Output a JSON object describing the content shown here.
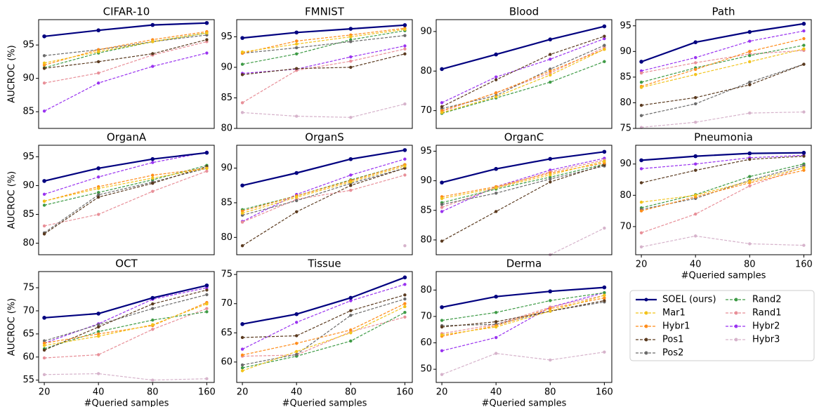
{
  "series_styles": [
    {
      "name": "SOEL (ours)",
      "color": "#00007f",
      "dashed": false
    },
    {
      "name": "Mar1",
      "color": "#f2c31b",
      "dashed": true
    },
    {
      "name": "Hybr1",
      "color": "#ff8c1a",
      "dashed": true
    },
    {
      "name": "Pos1",
      "color": "#5a3a1f",
      "dashed": true
    },
    {
      "name": "Pos2",
      "color": "#6b6b6b",
      "dashed": true
    },
    {
      "name": "Rand2",
      "color": "#3d9a45",
      "dashed": true
    },
    {
      "name": "Rand1",
      "color": "#e88f98",
      "dashed": true
    },
    {
      "name": "Hybr2",
      "color": "#9932f0",
      "dashed": true
    },
    {
      "name": "Hybr3",
      "color": "#d6b3cb",
      "dashed": true
    }
  ],
  "legend_position": "lower right",
  "chart_data": [
    {
      "type": "line",
      "title": "CIFAR-10",
      "ylabel": "AUCROC (%)",
      "xscale": "log",
      "x": [
        20,
        40,
        80,
        160
      ],
      "xlim": [
        18.6,
        176
      ],
      "ylim": [
        82.5,
        98.8
      ],
      "yticks": [
        85,
        90,
        95
      ],
      "series": [
        {
          "values": [
            96.3,
            97.2,
            98.0,
            98.3
          ]
        },
        {
          "values": [
            92.3,
            94.0,
            95.5,
            96.8
          ]
        },
        {
          "values": [
            92.0,
            94.3,
            95.8,
            97.0
          ]
        },
        {
          "values": [
            91.5,
            92.5,
            93.7,
            95.8
          ]
        },
        {
          "values": [
            93.4,
            94.3,
            95.5,
            96.5
          ]
        },
        {
          "values": [
            91.6,
            93.8,
            95.5,
            96.8
          ]
        },
        {
          "values": [
            89.3,
            90.8,
            93.5,
            95.5
          ]
        },
        {
          "values": [
            85.1,
            89.3,
            91.8,
            93.8
          ]
        },
        {
          "values": [
            null,
            null,
            null,
            null
          ]
        }
      ]
    },
    {
      "type": "line",
      "title": "FMNIST",
      "xscale": "log",
      "x": [
        20,
        40,
        80,
        160
      ],
      "xlim": [
        18.6,
        176
      ],
      "ylim": [
        80,
        97.8
      ],
      "yticks": [
        80,
        85,
        90,
        95
      ],
      "series": [
        {
          "values": [
            94.8,
            95.7,
            96.3,
            96.9
          ]
        },
        {
          "values": [
            92.5,
            93.8,
            95.0,
            96.2
          ]
        },
        {
          "values": [
            92.3,
            94.3,
            95.3,
            96.4
          ]
        },
        {
          "values": [
            88.8,
            89.8,
            90.0,
            92.2
          ]
        },
        {
          "values": [
            92.3,
            93.2,
            94.2,
            95.2
          ]
        },
        {
          "values": [
            90.5,
            92.2,
            94.5,
            96.0
          ]
        },
        {
          "values": [
            84.2,
            89.5,
            91.0,
            93.0
          ]
        },
        {
          "values": [
            89.0,
            89.7,
            91.7,
            93.5
          ]
        },
        {
          "values": [
            82.6,
            82.0,
            81.8,
            84.0
          ]
        }
      ]
    },
    {
      "type": "line",
      "title": "Blood",
      "xscale": "log",
      "x": [
        20,
        40,
        80,
        160
      ],
      "xlim": [
        18.6,
        176
      ],
      "ylim": [
        65.5,
        93
      ],
      "yticks": [
        70,
        80,
        90
      ],
      "series": [
        {
          "values": [
            80.5,
            84.2,
            88.0,
            91.3
          ]
        },
        {
          "values": [
            69.5,
            73.5,
            79.0,
            85.5
          ]
        },
        {
          "values": [
            70.0,
            74.5,
            80.0,
            85.5
          ]
        },
        {
          "values": [
            71.0,
            77.8,
            84.2,
            88.8
          ]
        },
        {
          "values": [
            70.5,
            73.8,
            80.5,
            86.5
          ]
        },
        {
          "values": [
            69.3,
            73.2,
            77.2,
            82.4
          ]
        },
        {
          "values": [
            69.8,
            74.5,
            79.5,
            86.0
          ]
        },
        {
          "values": [
            72.0,
            78.5,
            83.0,
            88.2
          ]
        },
        {
          "values": [
            null,
            null,
            null,
            null
          ]
        }
      ]
    },
    {
      "type": "line",
      "title": "Path",
      "xscale": "log",
      "x": [
        20,
        40,
        80,
        160
      ],
      "xlim": [
        18.6,
        176
      ],
      "ylim": [
        75,
        96.2
      ],
      "yticks": [
        75,
        80,
        85,
        90,
        95
      ],
      "series": [
        {
          "values": [
            88.0,
            91.8,
            93.8,
            95.4
          ]
        },
        {
          "values": [
            83.0,
            85.5,
            88.0,
            90.5
          ]
        },
        {
          "values": [
            83.2,
            86.5,
            90.0,
            92.5
          ]
        },
        {
          "values": [
            79.5,
            81.0,
            83.5,
            87.5
          ]
        },
        {
          "values": [
            77.5,
            79.8,
            84.0,
            87.5
          ]
        },
        {
          "values": [
            84.0,
            86.8,
            89.2,
            91.2
          ]
        },
        {
          "values": [
            85.8,
            87.8,
            89.5,
            90.2
          ]
        },
        {
          "values": [
            86.2,
            88.8,
            92.0,
            94.0
          ]
        },
        {
          "values": [
            75.2,
            76.2,
            78.0,
            78.2
          ]
        }
      ]
    },
    {
      "type": "line",
      "title": "OrganA",
      "ylabel": "AUCROC (%)",
      "xscale": "log",
      "x": [
        20,
        40,
        80,
        160
      ],
      "xlim": [
        18.6,
        176
      ],
      "ylim": [
        78,
        97
      ],
      "yticks": [
        80,
        85,
        90,
        95
      ],
      "series": [
        {
          "values": [
            90.8,
            93.0,
            94.6,
            95.7
          ]
        },
        {
          "values": [
            87.3,
            89.5,
            91.3,
            93.0
          ]
        },
        {
          "values": [
            87.3,
            89.8,
            91.8,
            93.0
          ]
        },
        {
          "values": [
            81.6,
            88.0,
            90.4,
            93.3
          ]
        },
        {
          "values": [
            81.8,
            88.4,
            90.6,
            93.0
          ]
        },
        {
          "values": [
            86.6,
            88.8,
            91.0,
            93.5
          ]
        },
        {
          "values": [
            83.0,
            85.0,
            89.0,
            92.5
          ]
        },
        {
          "values": [
            88.5,
            91.5,
            94.0,
            95.8
          ]
        },
        {
          "values": [
            null,
            null,
            null,
            null
          ]
        }
      ]
    },
    {
      "type": "line",
      "title": "OrganS",
      "xscale": "log",
      "x": [
        20,
        40,
        80,
        160
      ],
      "xlim": [
        18.6,
        176
      ],
      "ylim": [
        77.5,
        93.3
      ],
      "yticks": [
        80,
        85,
        90
      ],
      "series": [
        {
          "values": [
            87.5,
            89.3,
            91.3,
            92.6
          ]
        },
        {
          "values": [
            83.5,
            85.8,
            88.0,
            90.3
          ]
        },
        {
          "values": [
            83.8,
            86.0,
            88.2,
            90.5
          ]
        },
        {
          "values": [
            78.8,
            83.7,
            87.5,
            90.0
          ]
        },
        {
          "values": [
            83.2,
            85.3,
            87.8,
            90.0
          ]
        },
        {
          "values": [
            84.0,
            86.0,
            88.3,
            90.5
          ]
        },
        {
          "values": [
            82.2,
            85.5,
            86.8,
            89.0
          ]
        },
        {
          "values": [
            82.3,
            86.2,
            89.0,
            91.3
          ]
        },
        {
          "values": [
            null,
            null,
            null,
            78.8
          ]
        }
      ]
    },
    {
      "type": "line",
      "title": "OrganC",
      "xscale": "log",
      "x": [
        20,
        40,
        80,
        160
      ],
      "xlim": [
        18.6,
        176
      ],
      "ylim": [
        77.5,
        96
      ],
      "yticks": [
        80,
        85,
        90,
        95
      ],
      "series": [
        {
          "values": [
            89.7,
            92.0,
            93.7,
            94.9
          ]
        },
        {
          "values": [
            87.0,
            88.8,
            91.0,
            93.3
          ]
        },
        {
          "values": [
            87.3,
            89.0,
            91.3,
            93.0
          ]
        },
        {
          "values": [
            79.8,
            84.8,
            89.8,
            92.7
          ]
        },
        {
          "values": [
            86.0,
            87.9,
            90.3,
            92.5
          ]
        },
        {
          "values": [
            86.3,
            88.6,
            90.6,
            92.8
          ]
        },
        {
          "values": [
            85.5,
            88.8,
            91.5,
            93.5
          ]
        },
        {
          "values": [
            84.8,
            89.0,
            91.8,
            93.8
          ]
        },
        {
          "values": [
            null,
            null,
            77.5,
            82.0
          ]
        }
      ]
    },
    {
      "type": "line",
      "title": "Pneumonia",
      "xlabel": "#Queried samples",
      "xscale": "log",
      "x": [
        20,
        40,
        80,
        160
      ],
      "xlim": [
        18.6,
        176
      ],
      "xticks": [
        20,
        40,
        80,
        160
      ],
      "ylim": [
        61,
        96
      ],
      "yticks": [
        70,
        80,
        90
      ],
      "series": [
        {
          "values": [
            91.2,
            92.5,
            93.4,
            93.6
          ]
        },
        {
          "values": [
            77.8,
            80.0,
            84.5,
            88.8
          ]
        },
        {
          "values": [
            75.0,
            79.5,
            84.0,
            88.0
          ]
        },
        {
          "values": [
            84.0,
            88.0,
            91.5,
            92.5
          ]
        },
        {
          "values": [
            75.5,
            79.0,
            84.8,
            89.5
          ]
        },
        {
          "values": [
            76.0,
            80.2,
            86.0,
            90.0
          ]
        },
        {
          "values": [
            68.0,
            74.0,
            83.0,
            89.0
          ]
        },
        {
          "values": [
            88.5,
            90.0,
            92.0,
            92.8
          ]
        },
        {
          "values": [
            63.5,
            67.0,
            64.5,
            64.0
          ]
        }
      ]
    },
    {
      "type": "line",
      "title": "OCT",
      "ylabel": "AUCROC (%)",
      "xlabel": "#Queried samples",
      "xscale": "log",
      "x": [
        20,
        40,
        80,
        160
      ],
      "xlim": [
        18.6,
        176
      ],
      "xticks": [
        20,
        40,
        80,
        160
      ],
      "ylim": [
        54.5,
        78.5
      ],
      "yticks": [
        55,
        60,
        65,
        70,
        75
      ],
      "series": [
        {
          "values": [
            68.5,
            69.4,
            72.8,
            75.5
          ]
        },
        {
          "values": [
            62.5,
            64.5,
            67.0,
            71.5
          ]
        },
        {
          "values": [
            63.0,
            65.0,
            66.8,
            71.8
          ]
        },
        {
          "values": [
            61.5,
            66.5,
            71.5,
            74.5
          ]
        },
        {
          "values": [
            63.5,
            67.0,
            70.5,
            73.5
          ]
        },
        {
          "values": [
            61.8,
            65.5,
            68.0,
            69.8
          ]
        },
        {
          "values": [
            59.8,
            60.5,
            66.0,
            70.5
          ]
        },
        {
          "values": [
            63.0,
            67.2,
            72.5,
            75.0
          ]
        },
        {
          "values": [
            56.2,
            56.4,
            55.0,
            55.3
          ]
        }
      ]
    },
    {
      "type": "line",
      "title": "Tissue",
      "xlabel": "#Queried samples",
      "xscale": "log",
      "x": [
        20,
        40,
        80,
        160
      ],
      "xlim": [
        18.6,
        176
      ],
      "xticks": [
        20,
        40,
        80,
        160
      ],
      "ylim": [
        56.5,
        75.5
      ],
      "yticks": [
        60,
        65,
        70,
        75
      ],
      "series": [
        {
          "values": [
            66.5,
            68.2,
            71.0,
            74.5
          ]
        },
        {
          "values": [
            58.5,
            61.8,
            65.0,
            69.5
          ]
        },
        {
          "values": [
            61.2,
            63.2,
            65.5,
            70.0
          ]
        },
        {
          "values": [
            64.2,
            64.5,
            68.8,
            71.5
          ]
        },
        {
          "values": [
            59.5,
            61.3,
            68.0,
            70.8
          ]
        },
        {
          "values": [
            59.0,
            61.0,
            63.6,
            68.5
          ]
        },
        {
          "values": [
            61.0,
            61.2,
            65.2,
            67.7
          ]
        },
        {
          "values": [
            62.2,
            66.8,
            70.5,
            73.3
          ]
        },
        {
          "values": [
            null,
            null,
            null,
            null
          ]
        }
      ]
    },
    {
      "type": "line",
      "title": "Derma",
      "xlabel": "#Queried samples",
      "xscale": "log",
      "x": [
        20,
        40,
        80,
        160
      ],
      "xlim": [
        18.6,
        176
      ],
      "xticks": [
        20,
        40,
        80,
        160
      ],
      "ylim": [
        45,
        87
      ],
      "yticks": [
        50,
        60,
        70,
        80
      ],
      "series": [
        {
          "values": [
            73.5,
            77.5,
            79.5,
            81.0
          ]
        },
        {
          "values": [
            63.0,
            66.0,
            72.0,
            78.0
          ]
        },
        {
          "values": [
            62.5,
            66.5,
            73.0,
            77.0
          ]
        },
        {
          "values": [
            66.0,
            68.0,
            72.0,
            76.0
          ]
        },
        {
          "values": [
            66.5,
            67.0,
            72.0,
            75.5
          ]
        },
        {
          "values": [
            68.5,
            71.5,
            76.0,
            79.0
          ]
        },
        {
          "values": [
            63.5,
            67.0,
            73.5,
            78.0
          ]
        },
        {
          "values": [
            57.0,
            62.0,
            73.5,
            79.0
          ]
        },
        {
          "values": [
            48.0,
            56.0,
            53.5,
            56.5
          ]
        }
      ]
    }
  ]
}
